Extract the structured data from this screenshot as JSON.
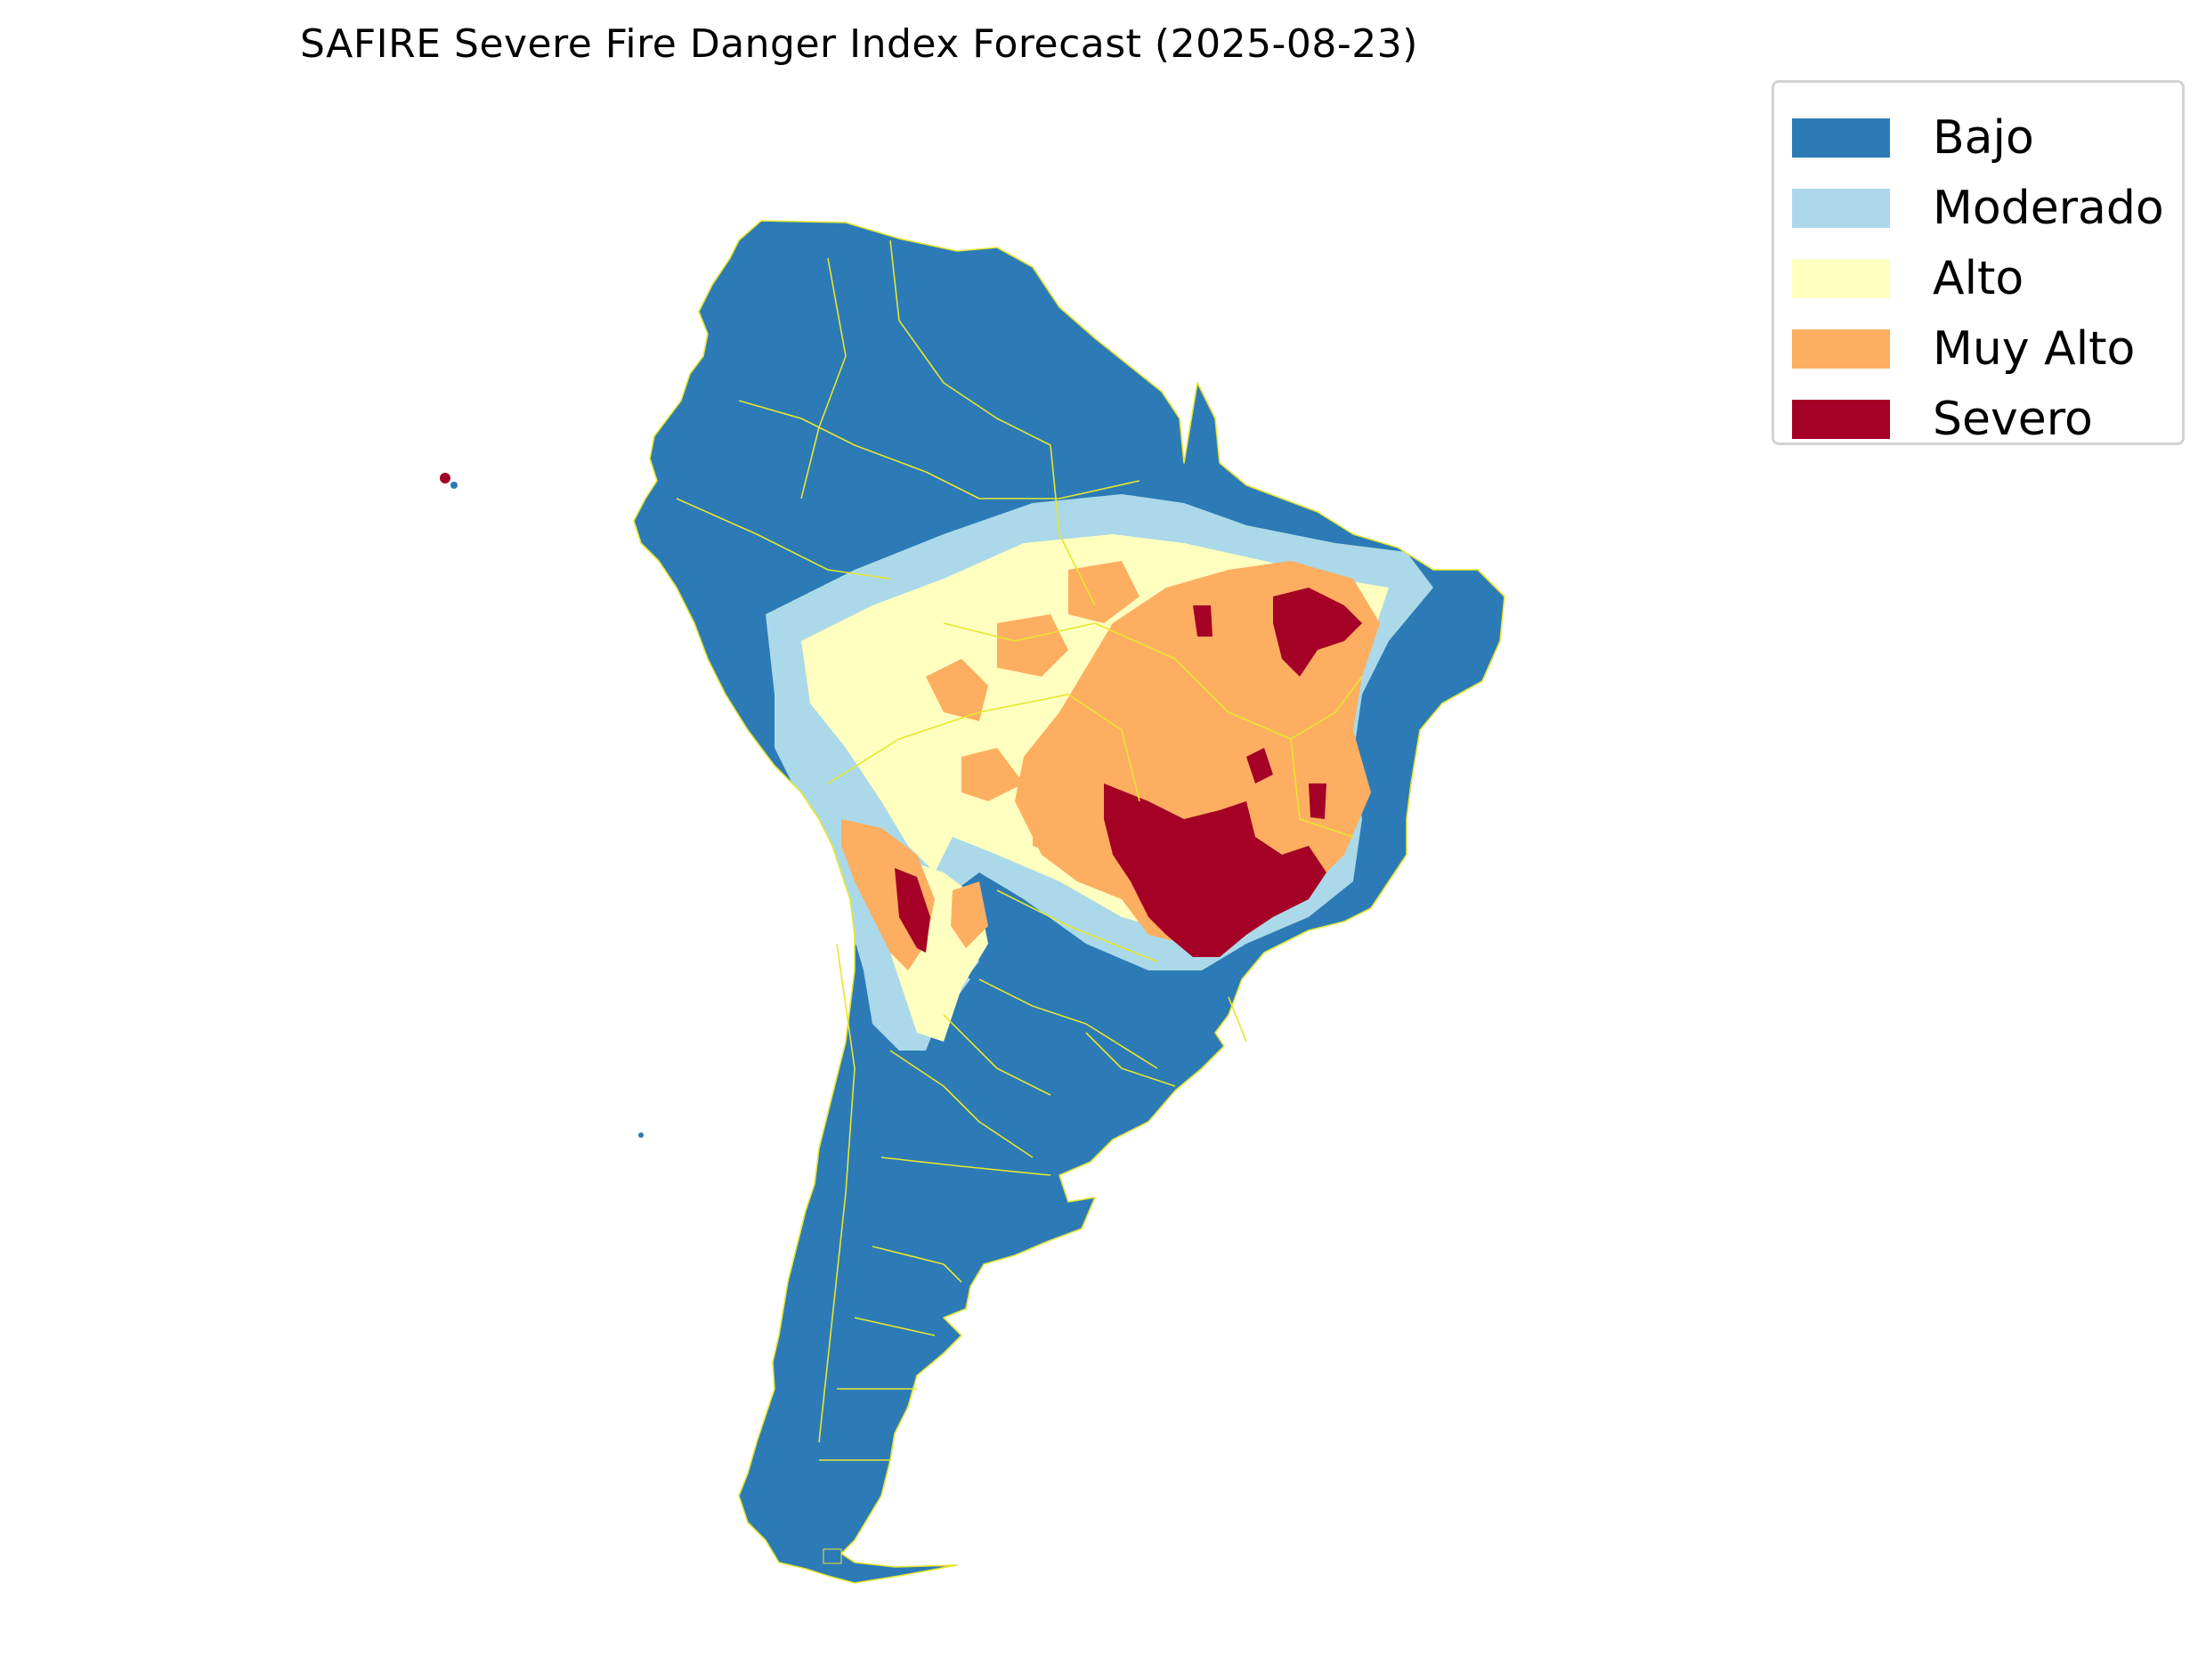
{
  "title": "SAFIRE Severe Fire Danger Index Forecast (2025-08-23)",
  "legend": {
    "items": [
      {
        "label": "Bajo",
        "color": "#2c7bb6"
      },
      {
        "label": "Moderado",
        "color": "#abd9e9"
      },
      {
        "label": "Alto",
        "color": "#ffffbf"
      },
      {
        "label": "Muy Alto",
        "color": "#fdae61"
      },
      {
        "label": "Severo",
        "color": "#a50026"
      }
    ]
  },
  "map": {
    "region": "South America",
    "boundary_color": "#e6e62e",
    "background_color": "#ffffff"
  }
}
